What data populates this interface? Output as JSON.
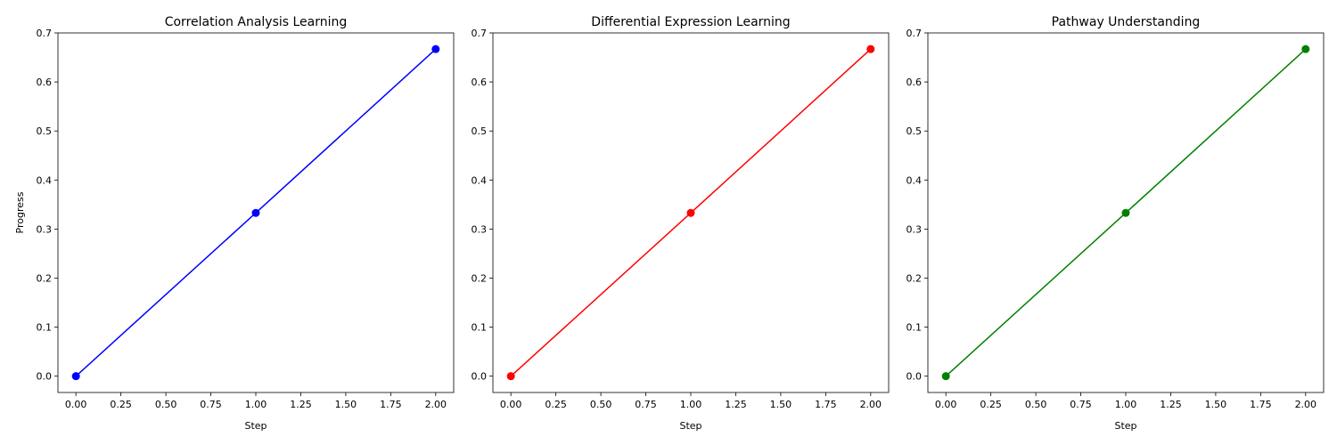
{
  "chart_data": [
    {
      "type": "line",
      "title": "Correlation Analysis Learning",
      "xlabel": "Step",
      "ylabel": "Progress",
      "xlim": [
        -0.1,
        2.1
      ],
      "ylim": [
        -0.0333,
        0.7
      ],
      "xticks": [
        "0.00",
        "0.25",
        "0.50",
        "0.75",
        "1.00",
        "1.25",
        "1.50",
        "1.75",
        "2.00"
      ],
      "yticks": [
        "0.0",
        "0.1",
        "0.2",
        "0.3",
        "0.4",
        "0.5",
        "0.6",
        "0.7"
      ],
      "x": [
        0,
        1,
        2
      ],
      "y": [
        0.0,
        0.333,
        0.667
      ],
      "color": "#0000ff",
      "marker": "circle",
      "grid": false
    },
    {
      "type": "line",
      "title": "Differential Expression Learning",
      "xlabel": "Step",
      "ylabel": "",
      "xlim": [
        -0.1,
        2.1
      ],
      "ylim": [
        -0.0333,
        0.7
      ],
      "xticks": [
        "0.00",
        "0.25",
        "0.50",
        "0.75",
        "1.00",
        "1.25",
        "1.50",
        "1.75",
        "2.00"
      ],
      "yticks": [
        "0.0",
        "0.1",
        "0.2",
        "0.3",
        "0.4",
        "0.5",
        "0.6",
        "0.7"
      ],
      "x": [
        0,
        1,
        2
      ],
      "y": [
        0.0,
        0.333,
        0.667
      ],
      "color": "#ff0000",
      "marker": "circle",
      "grid": false
    },
    {
      "type": "line",
      "title": "Pathway Understanding",
      "xlabel": "Step",
      "ylabel": "",
      "xlim": [
        -0.1,
        2.1
      ],
      "ylim": [
        -0.0333,
        0.7
      ],
      "xticks": [
        "0.00",
        "0.25",
        "0.50",
        "0.75",
        "1.00",
        "1.25",
        "1.50",
        "1.75",
        "2.00"
      ],
      "yticks": [
        "0.0",
        "0.1",
        "0.2",
        "0.3",
        "0.4",
        "0.5",
        "0.6",
        "0.7"
      ],
      "x": [
        0,
        1,
        2
      ],
      "y": [
        0.0,
        0.333,
        0.667
      ],
      "color": "#008000",
      "marker": "circle",
      "grid": false
    }
  ]
}
